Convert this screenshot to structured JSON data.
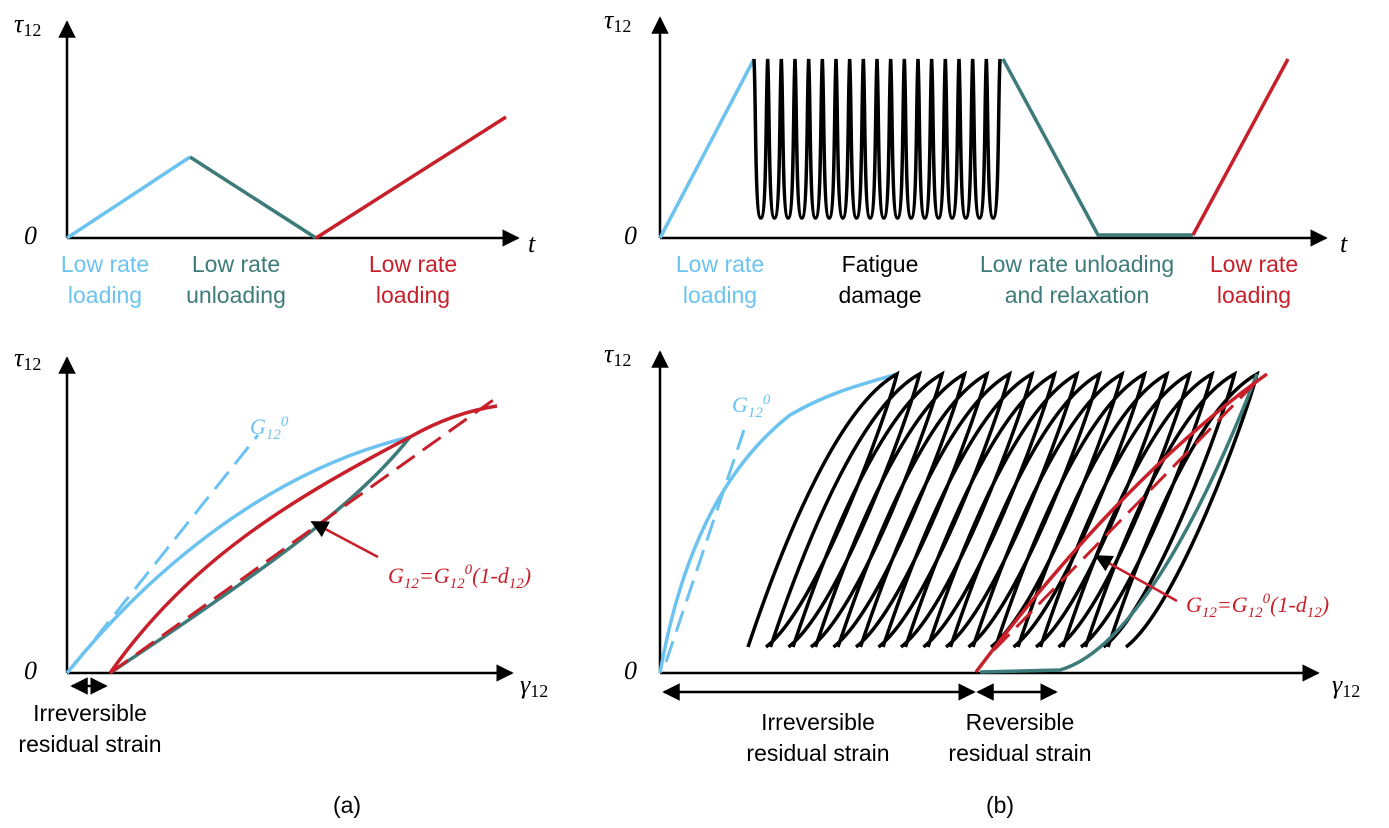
{
  "colors": {
    "light_blue": "#6cc3f0",
    "teal": "#3d7b7a",
    "red": "#c8202a",
    "black": "#000000"
  },
  "symbols": {
    "tau": "τ",
    "tau_sub": "12",
    "gamma": "γ",
    "gamma_sub": "12",
    "t": "t",
    "zero": "0"
  },
  "panel_a": {
    "caption": "(a)",
    "phases": [
      {
        "line1": "Low rate",
        "line2": "loading"
      },
      {
        "line1": "Low rate",
        "line2": "unloading"
      },
      {
        "line1": "Low rate",
        "line2": "loading"
      }
    ],
    "g0_label": {
      "base": "G",
      "sub": "12",
      "sup": "0"
    },
    "g_label": {
      "lhs": "G",
      "lhs_sub": "12",
      "eq": "=G",
      "rhs_sub": "12",
      "rhs_sup": "0",
      "tail1": "(1-d",
      "tail_sub": "12",
      "tail2": ")"
    },
    "strain_label": {
      "line1": "Irreversible",
      "line2": "residual strain"
    }
  },
  "panel_b": {
    "caption": "(b)",
    "phases": [
      {
        "line1": "Low rate",
        "line2": "loading"
      },
      {
        "line1": "Fatigue",
        "line2": "damage"
      },
      {
        "line1": "Low rate unloading",
        "line2": "and relaxation"
      },
      {
        "line1": "Low rate",
        "line2": "loading"
      }
    ],
    "g0_label": {
      "base": "G",
      "sub": "12",
      "sup": "0"
    },
    "g_label": {
      "lhs": "G",
      "lhs_sub": "12",
      "eq": "=G",
      "rhs_sub": "12",
      "rhs_sup": "0",
      "tail1": "(1-d",
      "tail_sub": "12",
      "tail2": ")"
    },
    "strain_irrev": {
      "line1": "Irreversible",
      "line2": "residual strain"
    },
    "strain_rev": {
      "line1": "Reversible",
      "line2": "residual strain"
    }
  }
}
